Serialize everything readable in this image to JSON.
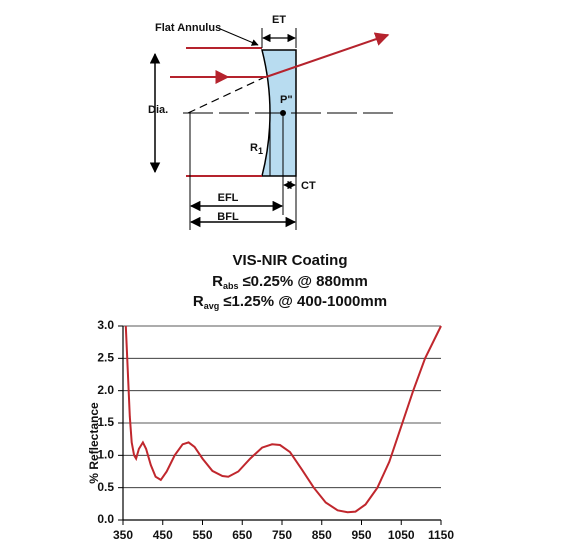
{
  "diagram": {
    "flat_annulus": "Flat Annulus",
    "et": "ET",
    "dia": "Dia.",
    "p": "P\"",
    "r": "R",
    "r_sub": "1",
    "efl": "EFL",
    "bfl": "BFL",
    "ct": "CT"
  },
  "chart_data": {
    "type": "line",
    "title": "VIS-NIR Coating",
    "subtitle": [
      {
        "symbol": "R",
        "subscript": "abs",
        "text": "≤0.25% @ 880mm"
      },
      {
        "symbol": "R",
        "subscript": "avg",
        "text": "≤1.25% @ 400-1000mm"
      }
    ],
    "y_label": "% Reflectance",
    "x": [
      357,
      362,
      367,
      372,
      378,
      383,
      390,
      400,
      408,
      420,
      432,
      445,
      460,
      480,
      500,
      515,
      530,
      550,
      575,
      600,
      615,
      640,
      670,
      700,
      725,
      745,
      770,
      800,
      830,
      860,
      890,
      915,
      935,
      960,
      990,
      1020,
      1050,
      1080,
      1110,
      1150
    ],
    "values": [
      3.0,
      2.3,
      1.6,
      1.2,
      1.0,
      0.95,
      1.1,
      1.2,
      1.1,
      0.85,
      0.67,
      0.62,
      0.75,
      1.0,
      1.17,
      1.2,
      1.13,
      0.95,
      0.76,
      0.68,
      0.67,
      0.75,
      0.95,
      1.12,
      1.17,
      1.16,
      1.05,
      0.78,
      0.5,
      0.27,
      0.15,
      0.12,
      0.13,
      0.24,
      0.5,
      0.9,
      1.45,
      2.0,
      2.5,
      3.0
    ],
    "color": "#c0272d",
    "xlim": [
      350,
      1150
    ],
    "xticks": [
      350,
      450,
      550,
      650,
      750,
      850,
      950,
      1050,
      1150
    ],
    "ylim": [
      0,
      3
    ],
    "yticks": [
      {
        "value": 0,
        "label": "0.0"
      },
      0.5,
      {
        "value": 1,
        "label": "1.0"
      },
      1.5,
      {
        "value": 2,
        "label": "2.0"
      },
      2.5,
      {
        "value": 3,
        "label": "3.0"
      }
    ],
    "grid": true
  }
}
